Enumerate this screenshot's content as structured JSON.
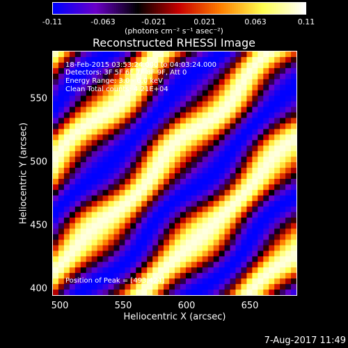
{
  "chart_data": {
    "type": "heatmap",
    "title": "Reconstructed RHESSI Image",
    "colorbar": {
      "range": [
        -0.11,
        0.11
      ],
      "tick_labels": [
        "-0.11",
        "-0.063",
        "-0.021",
        "0.021",
        "0.063",
        "0.11"
      ],
      "units_label": "(photons cm⁻² s⁻¹ asec⁻²)",
      "colormap": [
        "#0000ff",
        "#6a00c8",
        "#000000",
        "#c80000",
        "#ff8000",
        "#ffff50",
        "#ffffff"
      ]
    },
    "xlabel": "Heliocentric X (arcsec)",
    "ylabel": "Heliocentric Y (arcsec)",
    "xlim": [
      497,
      687
    ],
    "ylim": [
      395,
      585
    ],
    "x_ticks": [
      "500",
      "550",
      "600",
      "650"
    ],
    "y_ticks": [
      "400",
      "450",
      "500",
      "550"
    ],
    "annotations": [
      "18-Feb-2015 03:53:24.000 to 04:03:24.000",
      "Detectors: 3F 5F 6F 7F 8F 9F, Att 0",
      "Energy Range: 3.0 - 6.0 keV",
      "Clean    Total counts: 4.21E+04"
    ],
    "peak_label": "Position of Peak = [493,424]",
    "timestamp": "7-Aug-2017 11:49"
  }
}
